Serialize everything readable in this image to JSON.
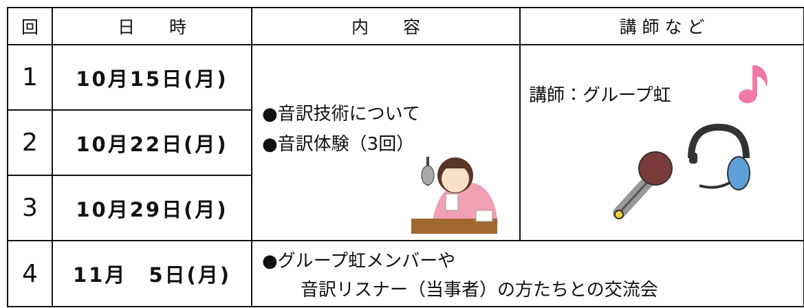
{
  "header": {
    "columns": [
      "回",
      "日　　時",
      "内　　容",
      "講 師 な ど"
    ]
  },
  "table": {
    "rows": [
      {
        "number": "1",
        "date": "10月15日(月)"
      },
      {
        "number": "2",
        "date": "10月22日(月)"
      },
      {
        "number": "3",
        "date": "10月29日(月)"
      }
    ]
  },
  "content_sessions": {
    "items": [
      "●音訳技術について",
      "●音訳体験（3回）"
    ]
  },
  "lecturer": "講師：グループ虹",
  "final_row": {
    "number": "4",
    "date": "11月　5日(月)",
    "content": [
      "●グループ虹メンバーや",
      "音訳リスナー（当事者）の方たちとの交流会"
    ]
  }
}
